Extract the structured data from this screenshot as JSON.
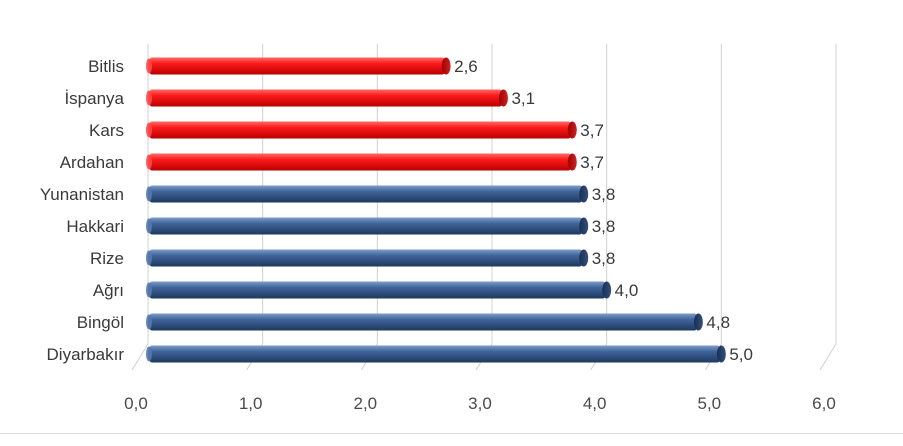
{
  "chart_data": {
    "type": "bar",
    "orientation": "horizontal",
    "categories": [
      "Bitlis",
      "İspanya",
      "Kars",
      "Ardahan",
      "Yunanistan",
      "Hakkari",
      "Rize",
      "Ağrı",
      "Bingöl",
      "Diyarbakır"
    ],
    "values": [
      2.6,
      3.1,
      3.7,
      3.7,
      3.8,
      3.8,
      3.8,
      4.0,
      4.8,
      5.0
    ],
    "value_labels": [
      "2,6",
      "3,1",
      "3,7",
      "3,7",
      "3,8",
      "3,8",
      "3,8",
      "4,0",
      "4,8",
      "5,0"
    ],
    "bar_colors": [
      "#ee1c1c",
      "#ee1c1c",
      "#ee1c1c",
      "#ee1c1c",
      "#3b5f93",
      "#3b5f93",
      "#3b5f93",
      "#3b5f93",
      "#3b5f93",
      "#3b5f93"
    ],
    "x_ticks": [
      0,
      1,
      2,
      3,
      4,
      5,
      6
    ],
    "x_tick_labels": [
      "0,0",
      "1,0",
      "2,0",
      "3,0",
      "4,0",
      "5,0",
      "6,0"
    ],
    "xlim": [
      0,
      6
    ],
    "grid": true,
    "title": "",
    "xlabel": "",
    "ylabel": ""
  }
}
